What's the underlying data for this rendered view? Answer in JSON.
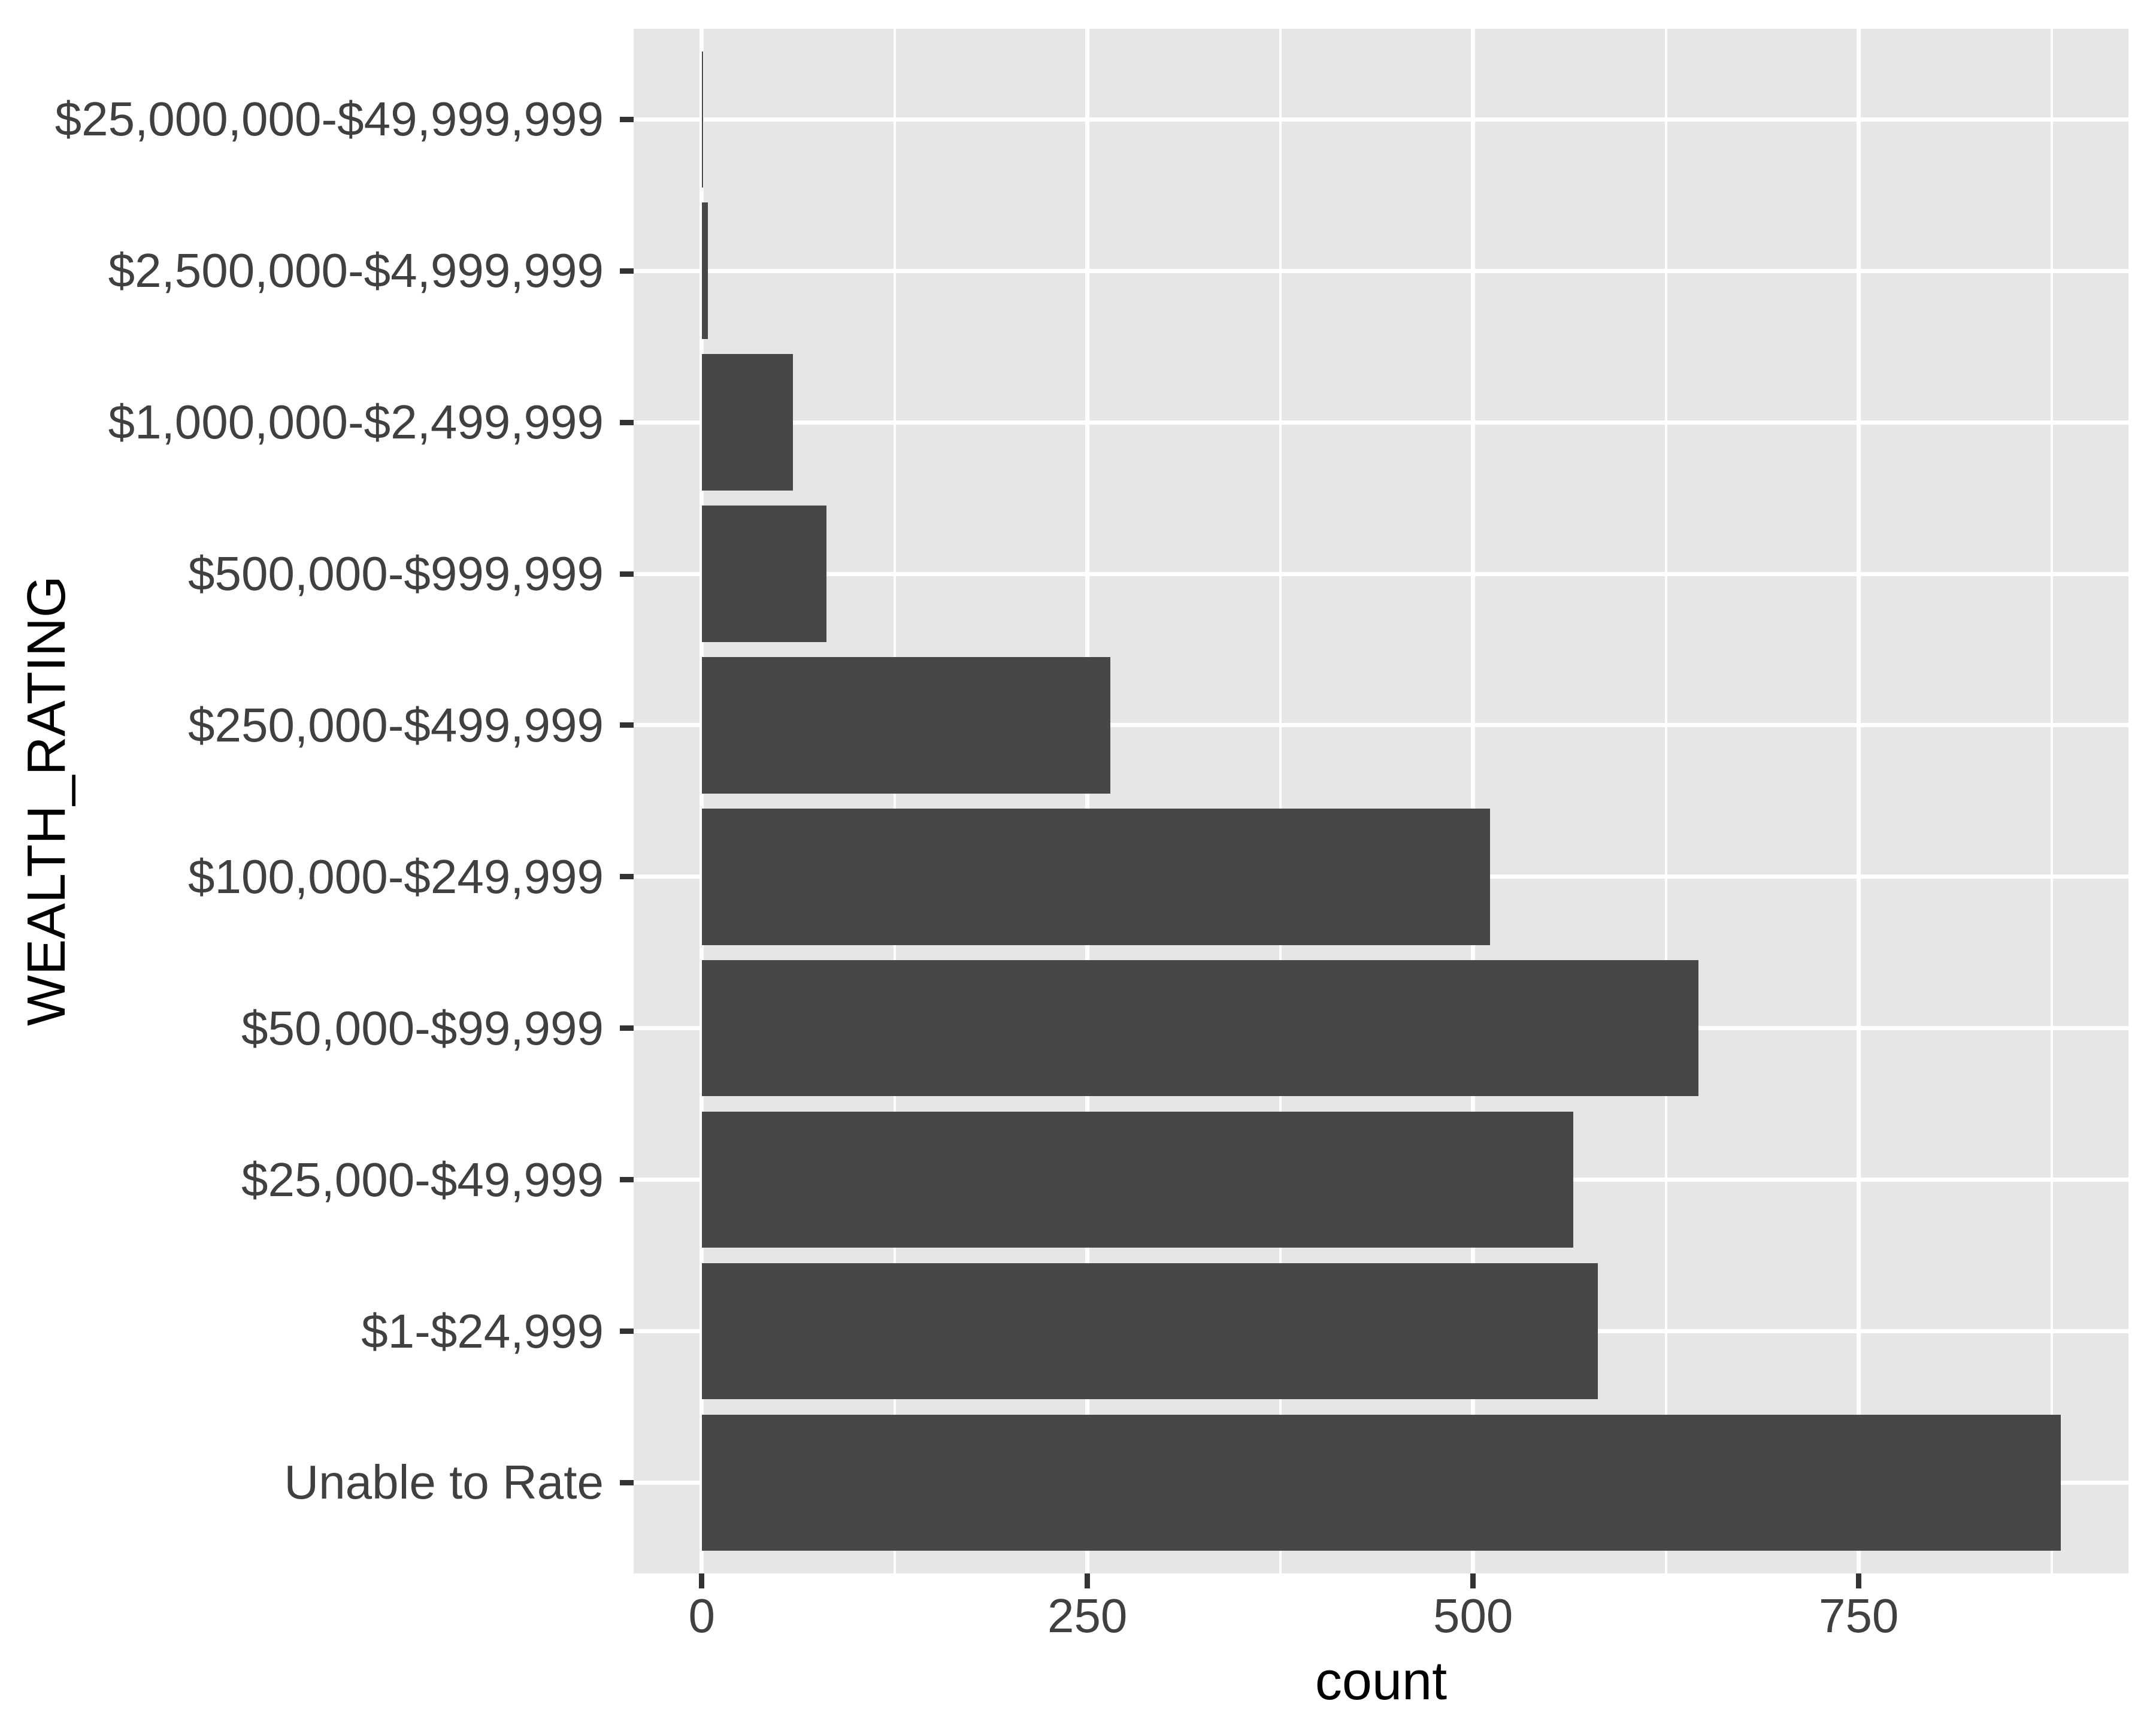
{
  "chart_data": {
    "type": "bar",
    "orientation": "horizontal",
    "title": "",
    "xlabel": "count",
    "ylabel": "WEALTH_RATING",
    "legend": "none",
    "grid": "white major and minor gridlines on gray panel",
    "categories_top_to_bottom": [
      "$25,000,000-$49,999,999",
      "$2,500,000-$4,999,999",
      "$1,000,000-$2,499,999",
      "$500,000-$999,999",
      "$250,000-$499,999",
      "$100,000-$249,999",
      "$50,000-$99,999",
      "$25,000-$49,999",
      "$1-$24,999",
      "Unable to Rate"
    ],
    "values": [
      1,
      4,
      59,
      81,
      265,
      511,
      646,
      565,
      581,
      881
    ],
    "x_major_ticks": [
      0,
      250,
      500,
      750
    ],
    "x_major_tick_labels": [
      "0",
      "250",
      "500",
      "750"
    ],
    "x_minor_ticks": [
      125,
      375,
      625,
      875
    ],
    "xlim": [
      -44,
      925
    ]
  },
  "style": {
    "bar_color": "#474747",
    "panel_bg": "#E6E6E6",
    "page_bg": "#FFFFFF",
    "grid_color": "#FFFFFF",
    "axis_tick_color": "#333333",
    "tick_label_color": "#404040",
    "axis_title_color": "#000000"
  }
}
